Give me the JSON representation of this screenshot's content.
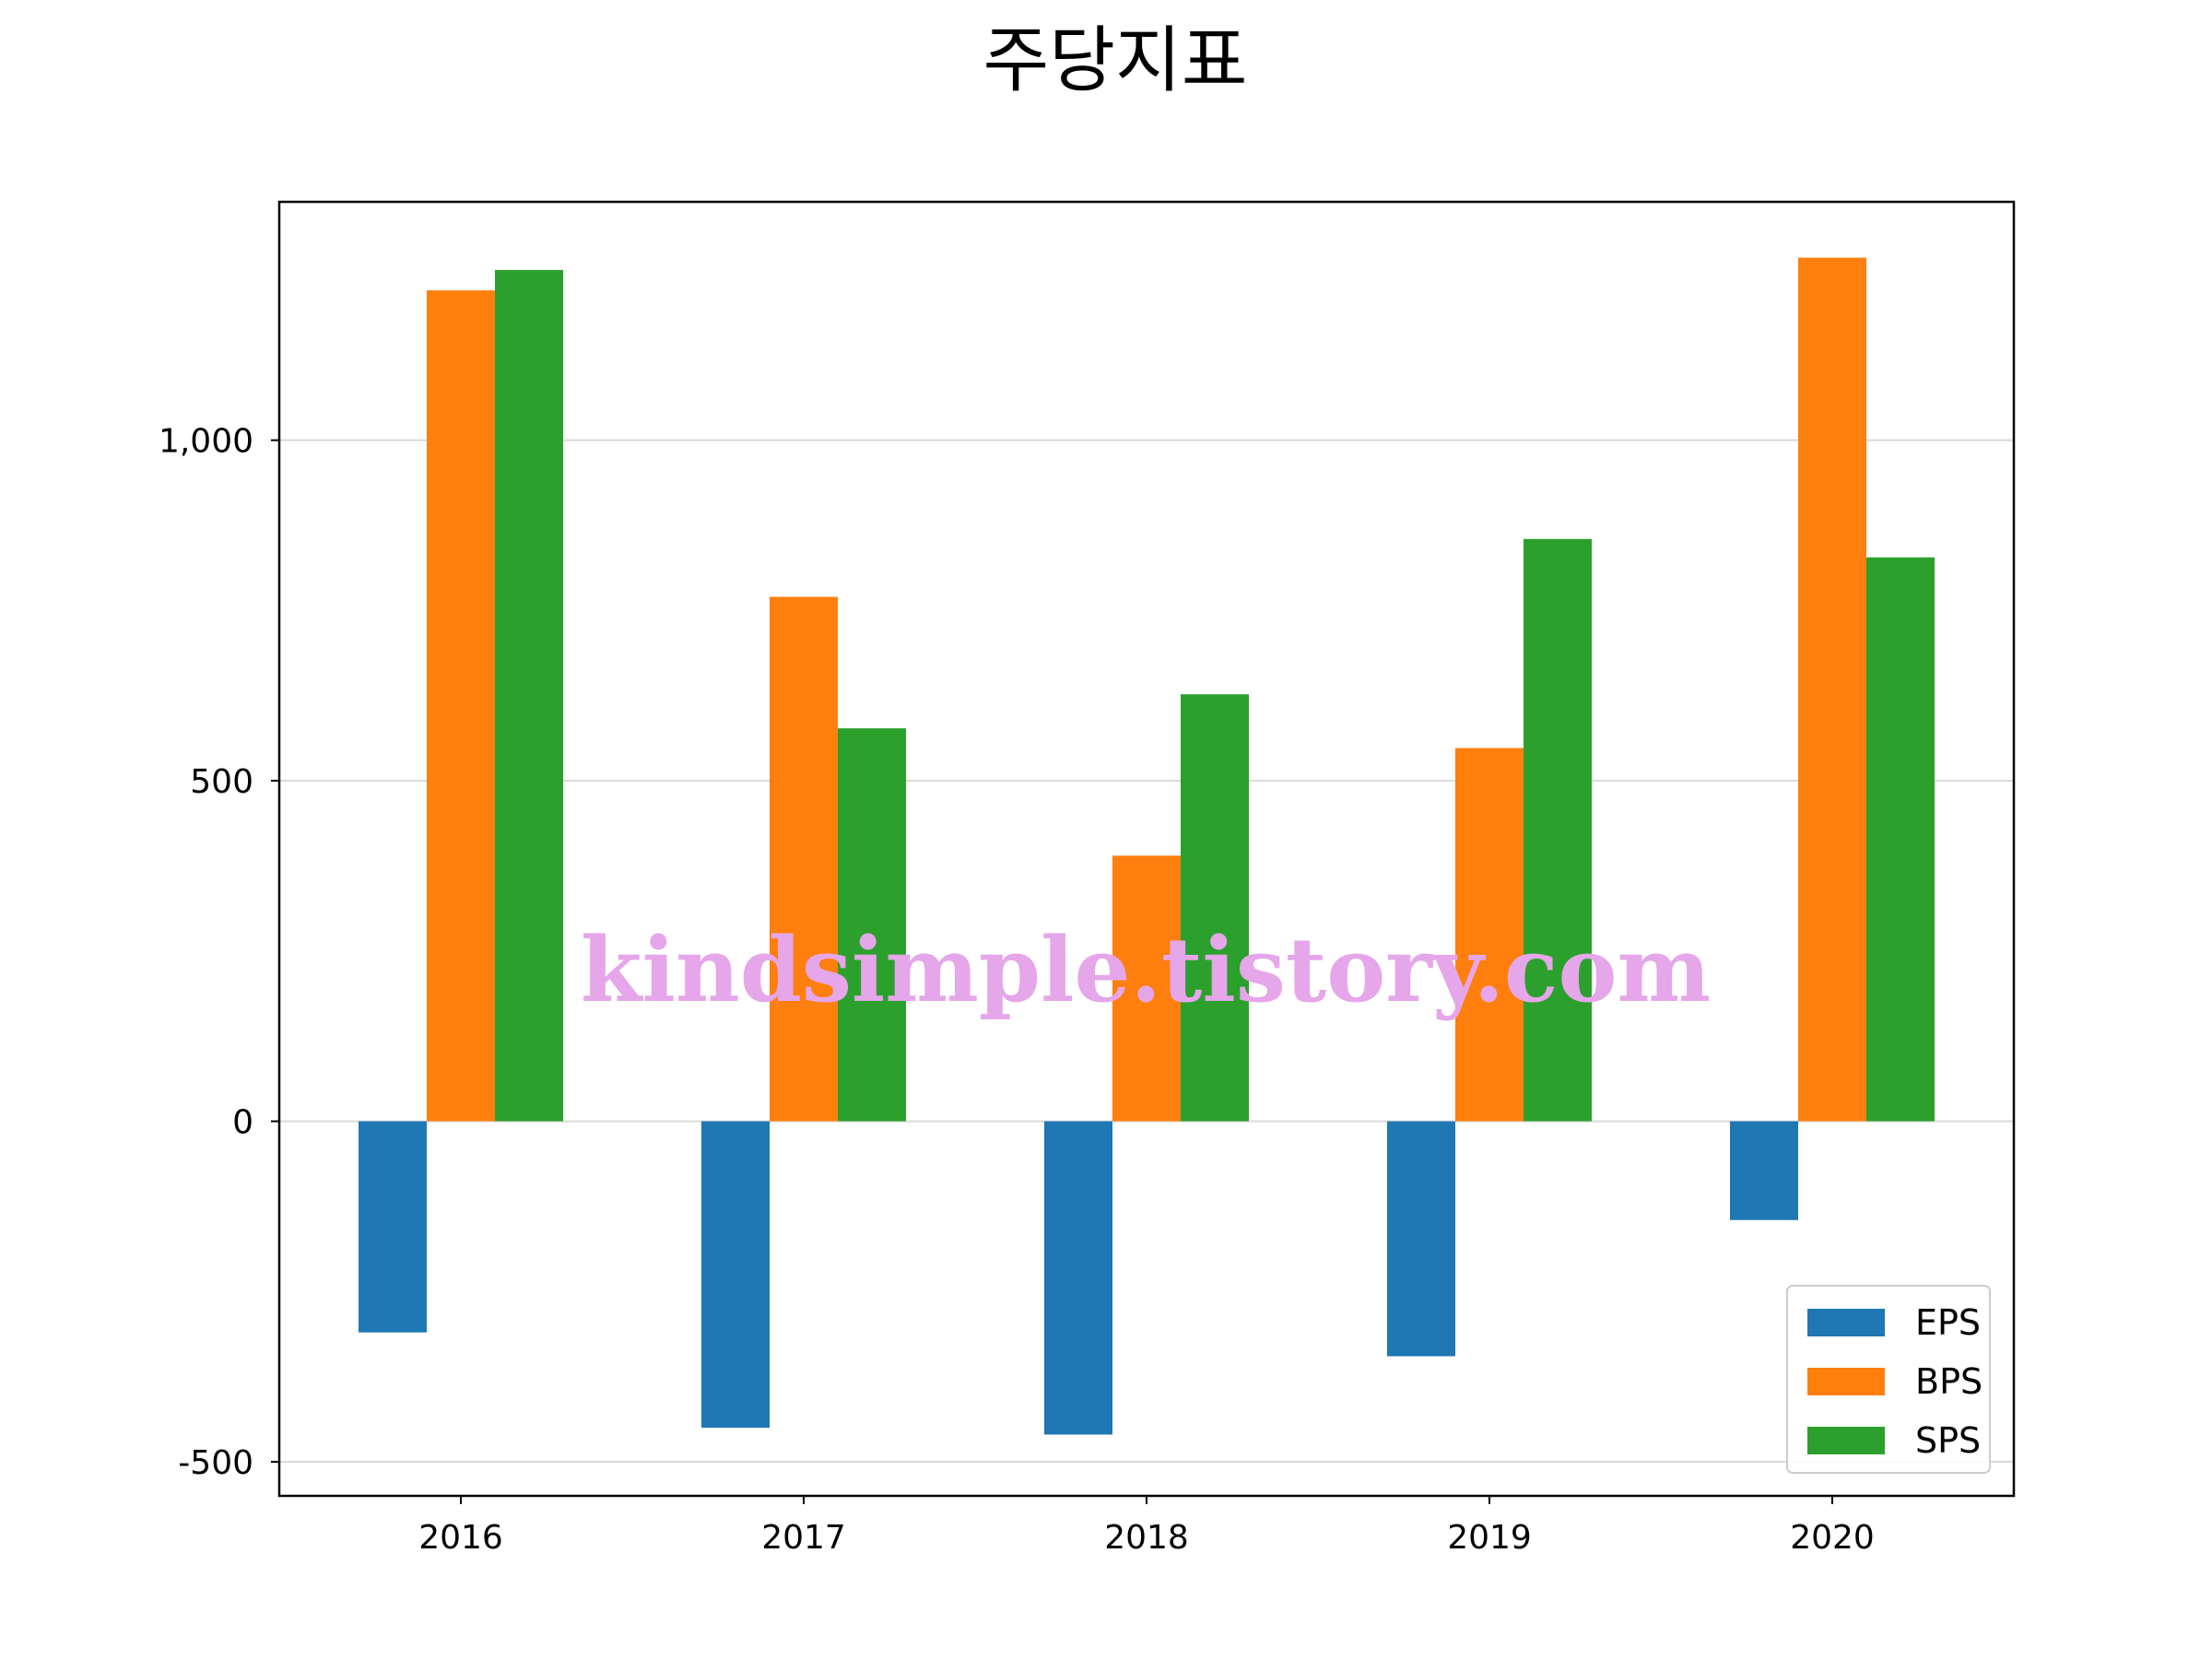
{
  "chart_data": {
    "type": "bar",
    "title": "주당지표",
    "xlabel": "",
    "ylabel": "",
    "categories": [
      "2016",
      "2017",
      "2018",
      "2019",
      "2020"
    ],
    "series": [
      {
        "name": "EPS",
        "color": "#1f77b4",
        "values": [
          -310,
          -450,
          -460,
          -345,
          -145
        ]
      },
      {
        "name": "BPS",
        "color": "#ff7f0e",
        "values": [
          1220,
          770,
          390,
          548,
          1268
        ]
      },
      {
        "name": "SPS",
        "color": "#2ca02c",
        "values": [
          1250,
          577,
          627,
          855,
          828
        ]
      }
    ],
    "ylim": [
      -550,
      1350
    ],
    "yticks": [
      -500,
      0,
      500,
      1000
    ],
    "ytick_labels": [
      "-500",
      "0",
      "500",
      "1,000"
    ],
    "grid": "y",
    "legend_position": "lower-right"
  },
  "watermark": "kindsimple.tistory.com"
}
